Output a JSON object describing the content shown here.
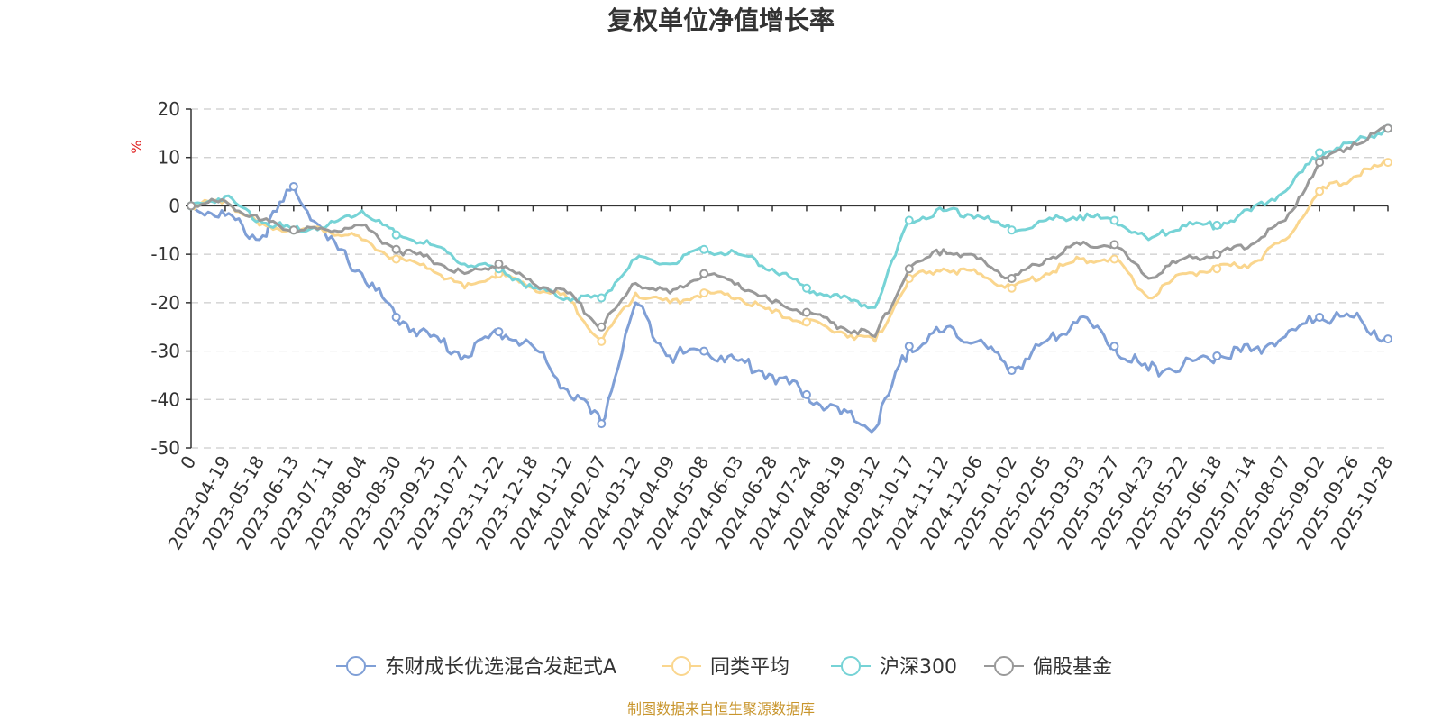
{
  "chart_data": {
    "type": "line",
    "title": "复权单位净值增长率",
    "ylabel": "%",
    "source": "制图数据来自恒生聚源数据库",
    "ylim": [
      -50,
      20
    ],
    "yticks": [
      20,
      10,
      0,
      -10,
      -20,
      -30,
      -40,
      -50
    ],
    "grid": true,
    "legend_position": "bottom",
    "x": [
      "0",
      "2023-04-19",
      "2023-05-18",
      "2023-06-13",
      "2023-07-11",
      "2023-08-04",
      "2023-08-30",
      "2023-09-25",
      "2023-10-27",
      "2023-11-22",
      "2023-12-18",
      "2024-01-12",
      "2024-02-07",
      "2024-03-12",
      "2024-04-09",
      "2024-05-08",
      "2024-06-03",
      "2024-06-28",
      "2024-07-24",
      "2024-08-19",
      "2024-09-12",
      "2024-10-17",
      "2024-11-12",
      "2024-12-06",
      "2025-01-02",
      "2025-02-05",
      "2025-03-03",
      "2025-03-27",
      "2025-04-23",
      "2025-05-22",
      "2025-06-18",
      "2025-07-14",
      "2025-08-07",
      "2025-09-02",
      "2025-09-26",
      "2025-10-28"
    ],
    "series": [
      {
        "name": "东财成长优选混合发起式A",
        "color": "#7f9fd6",
        "values": [
          0,
          -2,
          -7,
          4,
          -7,
          -14,
          -23,
          -27,
          -31,
          -26,
          -29,
          -38,
          -45,
          -20,
          -31,
          -30,
          -32,
          -35,
          -39,
          -43,
          -46,
          -29,
          -26,
          -28,
          -34,
          -28,
          -23,
          -29,
          -34,
          -33,
          -31,
          -30,
          -27,
          -23,
          -23,
          -27.5
        ]
      },
      {
        "name": "同类平均",
        "color": "#fad68e",
        "values": [
          0,
          1,
          -4,
          -5,
          -5,
          -7,
          -11,
          -13,
          -17,
          -14,
          -17,
          -19,
          -28,
          -18,
          -20,
          -18,
          -19,
          -22,
          -24,
          -26,
          -28,
          -15,
          -13,
          -14,
          -17,
          -14,
          -11,
          -11,
          -19,
          -14,
          -13,
          -12,
          -7,
          3,
          6,
          9
        ]
      },
      {
        "name": "沪深300",
        "color": "#76d3d6",
        "values": [
          0,
          2,
          -3,
          -5,
          -4,
          -1,
          -6,
          -8,
          -12,
          -13,
          -17,
          -19,
          -19,
          -11,
          -12,
          -9,
          -10,
          -13,
          -17,
          -19,
          -21,
          -3,
          -1,
          -2,
          -5,
          -3,
          -2,
          -3,
          -7,
          -4,
          -4,
          -1,
          3,
          11,
          13,
          16
        ]
      },
      {
        "name": "偏股基金",
        "color": "#999999",
        "values": [
          0,
          1,
          -3,
          -5,
          -5,
          -4,
          -9,
          -11,
          -14,
          -12,
          -16,
          -18,
          -25,
          -16,
          -18,
          -14,
          -16,
          -20,
          -22,
          -25,
          -27,
          -13,
          -9,
          -11,
          -15,
          -11,
          -8,
          -8,
          -15,
          -11,
          -10,
          -8,
          -3,
          9,
          13,
          16
        ]
      }
    ]
  }
}
